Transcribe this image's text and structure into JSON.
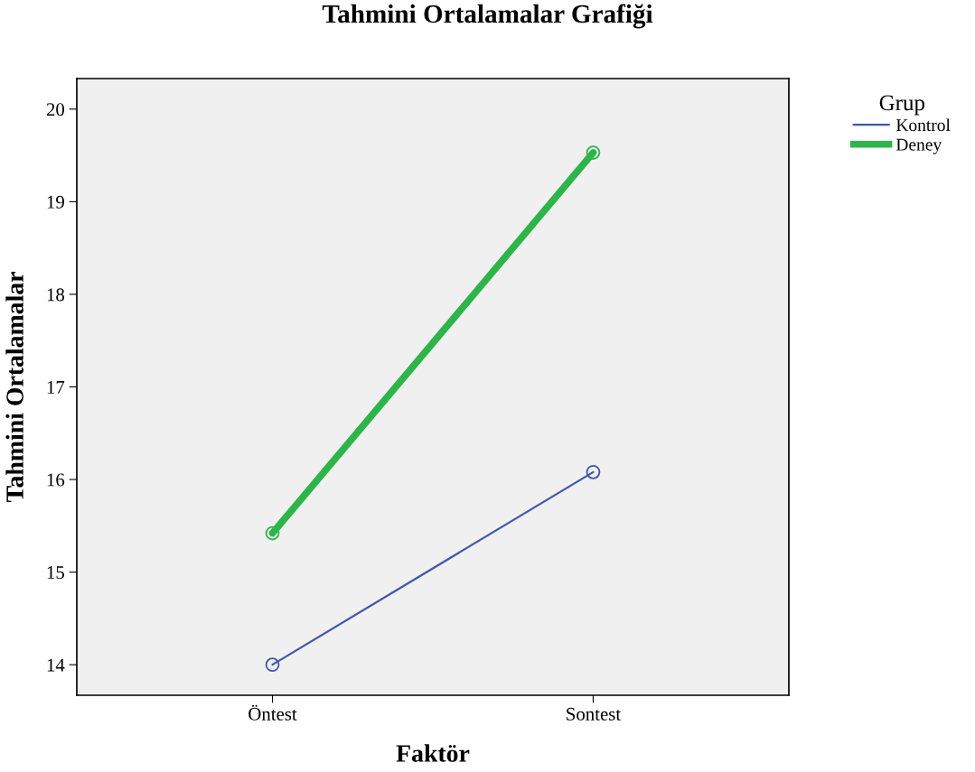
{
  "chart_data": {
    "type": "line",
    "title": "Tahmini Ortalamalar Grafiği",
    "xlabel": "Faktör",
    "ylabel": "Tahmini Ortalamalar",
    "legend_title": "Grup",
    "categories": [
      "Öntest",
      "Sontest"
    ],
    "series": [
      {
        "name": "Kontrol",
        "color": "#3e58ac",
        "values": [
          14.0,
          16.08
        ]
      },
      {
        "name": "Deney",
        "color": "#2db54a",
        "values": [
          15.42,
          19.53
        ]
      }
    ],
    "ylim": [
      13.67,
      20.33
    ],
    "yticks": [
      14,
      15,
      16,
      17,
      18,
      19,
      20
    ],
    "grid": false,
    "legend": "top right",
    "marker": "circle"
  }
}
